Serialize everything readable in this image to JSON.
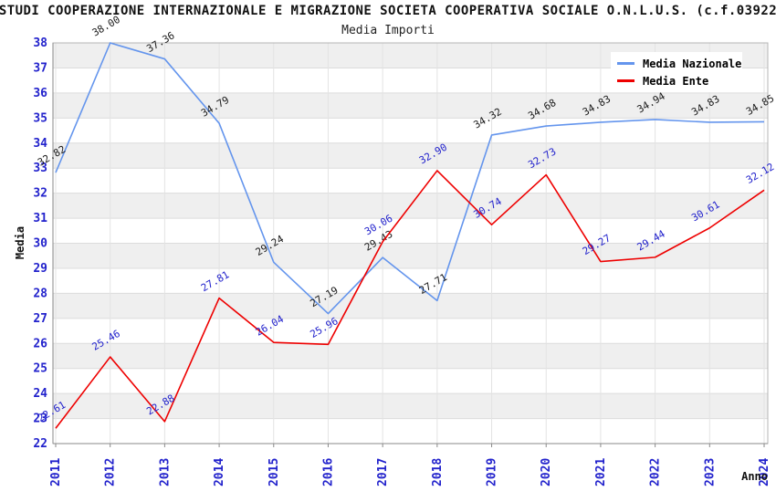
{
  "header": {
    "title": "STUDI COOPERAZIONE INTERNAZIONALE E MIGRAZIONE SOCIETA COOPERATIVA SOCIALE O.N.L.U.S. (c.f.03922",
    "subtitle": "Media Importi"
  },
  "colors": {
    "axis_tick_label": "#2222cc",
    "band_gray": "#efefef",
    "h_gridline": "#dcdcdc",
    "v_gridline": "#e3e3e3",
    "plot_border": "#b4b4b4",
    "axis_line": "#8a8a8a",
    "national_line": "#6495ed",
    "ente_line": "#ee0000",
    "national_value_label": "#1a1a1a",
    "ente_value_label": "#2222cc"
  },
  "chart_data": {
    "type": "line",
    "title": "Media Importi",
    "xlabel": "Anno",
    "ylabel": "Media",
    "x": [
      "2011",
      "2012",
      "2013",
      "2014",
      "2015",
      "2016",
      "2017",
      "2018",
      "2019",
      "2020",
      "2021",
      "2022",
      "2023",
      "2024"
    ],
    "series": [
      {
        "name": "Media Nazionale",
        "color": "#6495ed",
        "label_color": "#1a1a1a",
        "values": [
          32.82,
          38.0,
          37.36,
          34.79,
          29.24,
          27.19,
          29.43,
          27.71,
          34.32,
          34.68,
          34.83,
          34.94,
          34.83,
          34.85
        ]
      },
      {
        "name": "Media Ente",
        "color": "#ee0000",
        "label_color": "#2222cc",
        "values": [
          22.61,
          25.46,
          22.88,
          27.81,
          26.04,
          25.96,
          30.06,
          32.9,
          30.74,
          32.73,
          29.27,
          29.44,
          30.61,
          32.12
        ]
      }
    ],
    "ylim": [
      22,
      38
    ],
    "ytick_step": 1,
    "grid": "horizontal-bands",
    "legend_position": "top-right",
    "value_labels": "two-decimals-rotated"
  }
}
